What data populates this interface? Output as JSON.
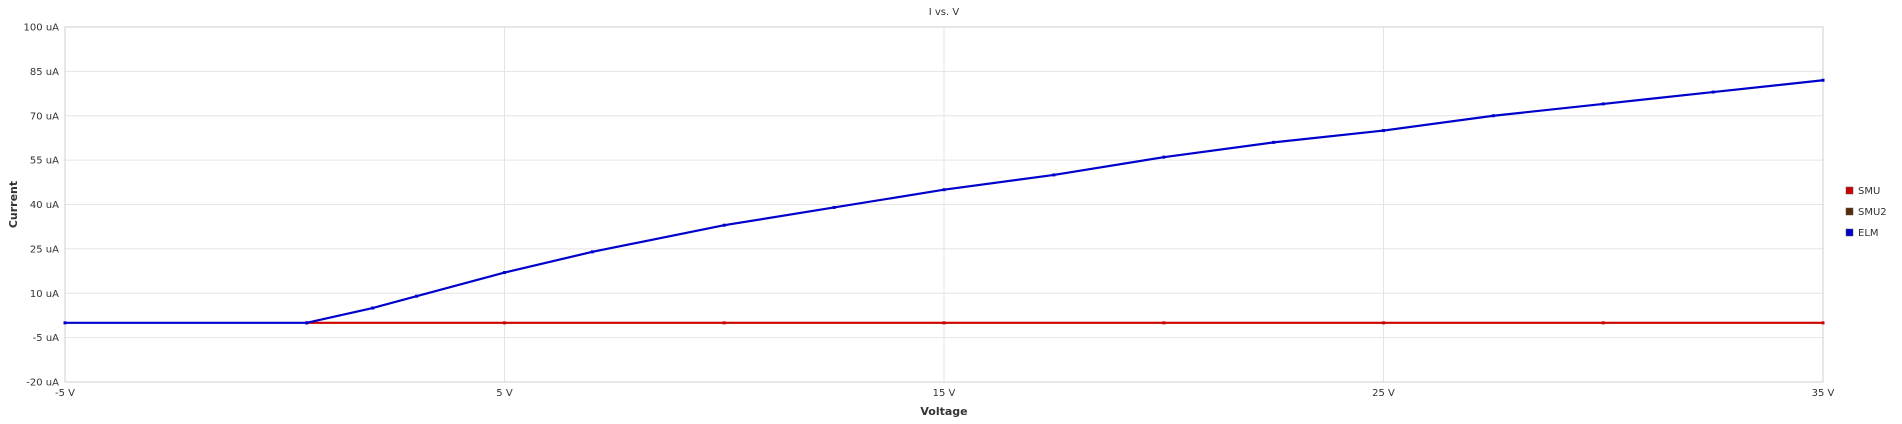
{
  "chart_data": {
    "type": "line",
    "title": "I vs. V",
    "xlabel": "Voltage",
    "ylabel": "Current",
    "xlim": [
      -5,
      35
    ],
    "ylim": [
      -20,
      100
    ],
    "x_unit": "V",
    "y_unit": "uA",
    "x_ticks": [
      -5,
      5,
      15,
      25,
      35
    ],
    "y_ticks": [
      -20,
      -5,
      10,
      25,
      40,
      55,
      70,
      85,
      100
    ],
    "x_tick_labels": [
      "-5 V",
      "5 V",
      "15 V",
      "25 V",
      "35 V"
    ],
    "y_tick_labels": [
      "-20 uA",
      "-5 uA",
      "10 uA",
      "25 uA",
      "40 uA",
      "55 uA",
      "70 uA",
      "85 uA",
      "100 uA"
    ],
    "grid": true,
    "legend_position": "right",
    "series": [
      {
        "name": "SMU",
        "color": "#cc0000",
        "marker": "square",
        "x": [
          0.5,
          5,
          10,
          15,
          20,
          25,
          30,
          35
        ],
        "y": [
          0,
          0,
          0,
          0,
          0,
          0,
          0,
          0
        ]
      },
      {
        "name": "SMU2",
        "color": "#5a2a0a",
        "marker": "square",
        "x": [],
        "y": []
      },
      {
        "name": "ELM",
        "color": "#0000cc",
        "marker": "square",
        "x": [
          -5,
          0.5,
          2,
          3,
          5,
          7,
          10,
          12.5,
          15,
          17.5,
          20,
          22.5,
          25,
          27.5,
          30,
          32.5,
          35
        ],
        "y": [
          0,
          0,
          5,
          9,
          17,
          24,
          33,
          39,
          45,
          50,
          56,
          61,
          65,
          70,
          74,
          78,
          82
        ]
      }
    ]
  }
}
